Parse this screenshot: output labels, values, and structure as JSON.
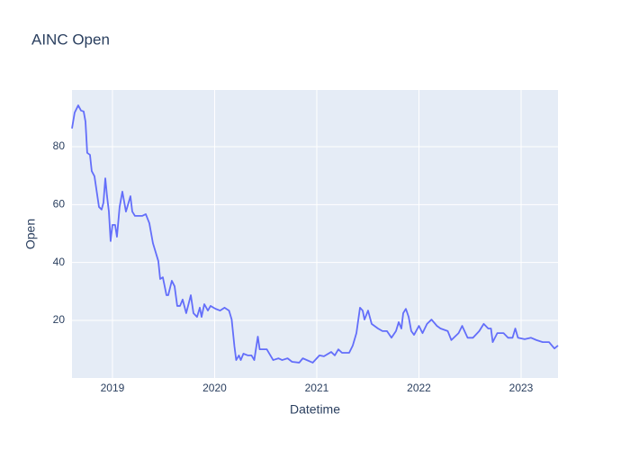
{
  "chart_data": {
    "type": "line",
    "title": "AINC Open",
    "xlabel": "Datetime",
    "ylabel": "Open",
    "x": [
      2018.604,
      2018.63,
      2018.665,
      2018.692,
      2018.718,
      2018.736,
      2018.753,
      2018.78,
      2018.797,
      2018.824,
      2018.868,
      2018.894,
      2018.912,
      2018.93,
      2018.947,
      2018.965,
      2018.982,
      2019.0,
      2019.026,
      2019.044,
      2019.07,
      2019.097,
      2019.132,
      2019.176,
      2019.194,
      2019.22,
      2019.291,
      2019.326,
      2019.361,
      2019.396,
      2019.449,
      2019.467,
      2019.493,
      2019.529,
      2019.546,
      2019.581,
      2019.608,
      2019.634,
      2019.661,
      2019.687,
      2019.722,
      2019.767,
      2019.793,
      2019.828,
      2019.855,
      2019.872,
      2019.899,
      2019.934,
      2019.96,
      2020.009,
      2020.053,
      2020.097,
      2020.141,
      2020.167,
      2020.194,
      2020.211,
      2020.238,
      2020.256,
      2020.282,
      2020.326,
      2020.361,
      2020.388,
      2020.423,
      2020.441,
      2020.511,
      2020.573,
      2020.626,
      2020.661,
      2020.714,
      2020.758,
      2020.828,
      2020.863,
      2020.96,
      2021.026,
      2021.07,
      2021.141,
      2021.176,
      2021.211,
      2021.247,
      2021.317,
      2021.352,
      2021.388,
      2021.423,
      2021.449,
      2021.467,
      2021.502,
      2021.537,
      2021.599,
      2021.643,
      2021.687,
      2021.731,
      2021.775,
      2021.802,
      2021.828,
      2021.846,
      2021.872,
      2021.899,
      2021.925,
      2021.952,
      2022.0,
      2022.035,
      2022.079,
      2022.123,
      2022.176,
      2022.211,
      2022.282,
      2022.317,
      2022.388,
      2022.423,
      2022.476,
      2022.529,
      2022.59,
      2022.634,
      2022.678,
      2022.705,
      2022.722,
      2022.767,
      2022.828,
      2022.872,
      2022.916,
      2022.943,
      2022.969,
      2023.035,
      2023.097,
      2023.15,
      2023.211,
      2023.273,
      2023.326,
      2023.361
    ],
    "series": [
      {
        "name": "Open",
        "color": "#636efa",
        "values": [
          86.3,
          91.8,
          94.3,
          92.5,
          92.2,
          88.7,
          77.9,
          77.2,
          71.6,
          69.8,
          59.2,
          58.3,
          60.7,
          69.1,
          62.9,
          57.6,
          47.4,
          53,
          53,
          48.9,
          59.2,
          64.5,
          57.6,
          62.9,
          57.6,
          56.1,
          56.1,
          56.7,
          53.6,
          46.7,
          40.5,
          34.3,
          34.9,
          28.7,
          28.7,
          33.7,
          31.8,
          25,
          25,
          27.2,
          22.5,
          28.7,
          22.5,
          21.2,
          24.4,
          21.2,
          25.6,
          23.4,
          25,
          24,
          23.4,
          24.4,
          23.4,
          20.3,
          11,
          6.3,
          7.9,
          6.3,
          8.5,
          7.9,
          7.9,
          6.3,
          14.4,
          10,
          10,
          6.3,
          6.9,
          6.3,
          6.9,
          5.7,
          5.4,
          6.9,
          5.4,
          7.9,
          7.6,
          9.1,
          7.9,
          10,
          8.8,
          8.8,
          11.3,
          15.6,
          24.4,
          23.4,
          20.3,
          23.4,
          18.8,
          17.2,
          16.3,
          16.3,
          14,
          16.3,
          19.4,
          17.2,
          22.5,
          24,
          21.2,
          16.3,
          15,
          18.1,
          15.6,
          18.8,
          20.3,
          18.1,
          17.2,
          16.3,
          13.2,
          15.6,
          18.1,
          14,
          14,
          16.3,
          18.8,
          17.2,
          17.2,
          12.5,
          15.6,
          15.6,
          14,
          14,
          17.2,
          14,
          13.5,
          14,
          13.2,
          12.5,
          12.5,
          10.3,
          11.3
        ]
      }
    ],
    "xlim": [
      2018.604,
      2023.361
    ],
    "xticks": [
      2019,
      2020,
      2021,
      2022,
      2023
    ],
    "ylim": [
      0.1,
      99.6
    ],
    "yticks": [
      20,
      40,
      60,
      80
    ],
    "grid": true
  }
}
